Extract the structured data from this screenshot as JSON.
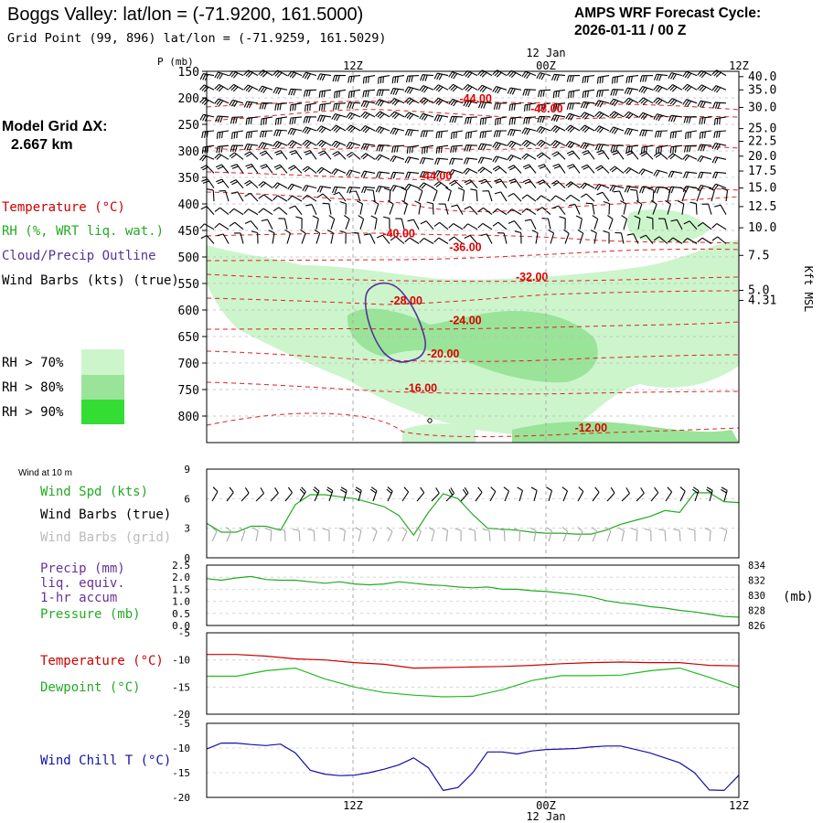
{
  "header": {
    "title": "Boggs Valley:  lat/lon = (-71.9200, 161.5000)",
    "subtitle": "Grid Point (99, 896) lat/lon = (-71.9259, 161.5029)",
    "cycle_line1": "AMPS WRF Forecast Cycle:",
    "cycle_line2": "2026-01-11 / 00  Z"
  },
  "model_grid": {
    "label": "Model Grid ΔX:",
    "value": "2.667 km"
  },
  "colors": {
    "temperature": "#cc0000",
    "rh": "#22aa22",
    "cloud": "#553399",
    "wind": "#000000",
    "wind_grid": "#aaaaaa",
    "dewpoint": "#22bb22",
    "windchill": "#1111aa",
    "rh70": "#ccf5cc",
    "rh80": "#99e499",
    "rh90": "#33dd33"
  },
  "time_axis": {
    "top_labels": [
      "12Z",
      "00Z",
      "12Z"
    ],
    "date_label": "12 Jan",
    "bottom_labels": [
      "12Z",
      "00Z",
      "12Z"
    ]
  },
  "chart_data": [
    {
      "name": "vertical-cross-section",
      "type": "heatmap",
      "y_axis_title": "P (mb)",
      "pressure_ticks": [
        "150",
        "200",
        "250",
        "300",
        "350",
        "400",
        "450",
        "500",
        "550",
        "600",
        "650",
        "700",
        "750",
        "800"
      ],
      "pressure_range": [
        150,
        850
      ],
      "height_ticks": [
        "40.0",
        "35.0",
        "30.0",
        "25.0",
        "22.5",
        "20.0",
        "17.5",
        "15.0",
        "12.5",
        "10.0",
        "7.5",
        "5.0",
        "4.31"
      ],
      "height_tick_pressures": [
        160,
        185,
        218,
        258,
        282,
        310,
        338,
        370,
        405,
        445,
        497,
        563,
        582
      ],
      "height_axis_label": "Kft MSL",
      "time_range_hours": [
        0,
        36
      ],
      "legend": {
        "temperature": "Temperature (°C)",
        "rh": "RH (%, WRT liq. wat.)",
        "cloud": "Cloud/Precip Outline",
        "wind": "Wind Barbs (kts) (true)"
      },
      "rh_legend": [
        "RH > 70%",
        "RH > 80%",
        "RH > 90%"
      ],
      "temperature_contours": [
        {
          "label": "-44.00",
          "t": 18.2,
          "p": 200
        },
        {
          "label": "-48.00",
          "t": 23,
          "p": 219
        },
        {
          "label": "-44.00",
          "t": 15.5,
          "p": 346
        },
        {
          "label": "-40.00",
          "t": 13,
          "p": 454
        },
        {
          "label": "-36.00",
          "t": 17.5,
          "p": 480
        },
        {
          "label": "-32.00",
          "t": 22,
          "p": 536
        },
        {
          "label": "-28.00",
          "t": 13.5,
          "p": 581
        },
        {
          "label": "-24.00",
          "t": 17.5,
          "p": 618
        },
        {
          "label": "-20.00",
          "t": 16,
          "p": 681
        },
        {
          "label": "-16.00",
          "t": 14.5,
          "p": 746
        },
        {
          "label": "-12.00",
          "t": 26,
          "p": 821
        }
      ]
    },
    {
      "name": "wind-panel",
      "type": "line",
      "title": "Wind at 10 m",
      "legend": [
        "Wind Spd (kts)",
        "Wind Barbs (true)",
        "Wind Barbs (grid)"
      ],
      "y_ticks": [
        "9",
        "6",
        "3",
        "0"
      ],
      "ylim": [
        0,
        9
      ],
      "series": [
        {
          "name": "Wind Spd (kts)",
          "x": [
            0,
            1,
            2,
            3,
            4,
            5,
            6,
            7,
            8,
            9,
            10,
            11,
            12,
            13,
            14,
            15,
            16,
            17,
            18,
            19,
            20,
            21,
            22,
            23,
            24,
            25,
            26,
            27,
            28,
            29,
            30,
            31,
            32,
            33,
            34,
            35,
            36
          ],
          "values": [
            3.5,
            2.6,
            2.6,
            3.2,
            3.2,
            2.8,
            5.4,
            6.4,
            6.4,
            6.2,
            6.0,
            5.6,
            5.2,
            4.3,
            2.3,
            4.6,
            6.5,
            6.0,
            4.4,
            3.0,
            2.9,
            2.8,
            2.6,
            2.5,
            2.5,
            2.4,
            2.4,
            2.8,
            3.4,
            3.8,
            4.2,
            4.8,
            4.6,
            6.6,
            6.6,
            5.7,
            5.6
          ]
        }
      ]
    },
    {
      "name": "precip-pressure-panel",
      "type": "line",
      "legend": [
        "Precip (mm)",
        "liq. equiv.",
        "1-hr accum",
        "Pressure (mb)"
      ],
      "y_ticks_left": [
        "2.5",
        "2.0",
        "1.5",
        "1.0",
        "0.5",
        "0.0"
      ],
      "y_ticks_right": [
        "834",
        "832",
        "830",
        "828",
        "826"
      ],
      "ylim_left": [
        0,
        2.5
      ],
      "ylim_right": [
        826,
        834
      ],
      "right_unit": "(mb)",
      "series": [
        {
          "name": "Pressure (mb)",
          "x": [
            0,
            1,
            2,
            3,
            4,
            5,
            6,
            7,
            8,
            9,
            10,
            11,
            12,
            13,
            14,
            15,
            16,
            17,
            18,
            19,
            20,
            21,
            22,
            23,
            24,
            25,
            26,
            27,
            28,
            29,
            30,
            31,
            32,
            33,
            34,
            35,
            36
          ],
          "values": [
            832.2,
            832.0,
            832.3,
            832.5,
            832.1,
            832.0,
            832.0,
            831.8,
            831.6,
            831.8,
            831.5,
            831.4,
            831.5,
            831.8,
            831.6,
            831.4,
            831.3,
            831.1,
            831.0,
            831.1,
            830.8,
            830.8,
            830.6,
            830.5,
            830.3,
            830.1,
            829.8,
            829.3,
            829.0,
            828.8,
            828.5,
            828.3,
            828.0,
            827.8,
            827.5,
            827.2,
            827.1
          ]
        }
      ]
    },
    {
      "name": "temperature-panel",
      "type": "line",
      "legend": [
        "Temperature (°C)",
        "Dewpoint (°C)"
      ],
      "y_ticks": [
        "-5",
        "-10",
        "-15",
        "-20"
      ],
      "ylim": [
        -20,
        -5
      ],
      "series": [
        {
          "name": "Temperature (°C)",
          "x": [
            0,
            2,
            4,
            6,
            8,
            10,
            12,
            14,
            16,
            18,
            20,
            22,
            24,
            26,
            28,
            30,
            32,
            34,
            36
          ],
          "values": [
            -9.0,
            -9.0,
            -9.3,
            -9.8,
            -10.0,
            -10.5,
            -10.8,
            -11.5,
            -11.4,
            -11.3,
            -11.2,
            -11.0,
            -10.7,
            -10.5,
            -10.4,
            -10.5,
            -10.5,
            -11.0,
            -11.1
          ]
        },
        {
          "name": "Dewpoint (°C)",
          "x": [
            0,
            2,
            4,
            6,
            8,
            10,
            12,
            14,
            16,
            18,
            20,
            22,
            24,
            26,
            28,
            30,
            32,
            34,
            36
          ],
          "values": [
            -13.0,
            -13.0,
            -12.0,
            -11.5,
            -13.5,
            -15.0,
            -16.0,
            -16.5,
            -16.8,
            -16.7,
            -15.5,
            -13.8,
            -12.9,
            -12.9,
            -12.8,
            -12.0,
            -11.5,
            -13.2,
            -15.1
          ]
        }
      ]
    },
    {
      "name": "windchill-panel",
      "type": "line",
      "legend": [
        "Wind Chill T (°C)"
      ],
      "y_ticks": [
        "-5",
        "-10",
        "-15",
        "-20"
      ],
      "ylim": [
        -20,
        -5
      ],
      "series": [
        {
          "name": "Wind Chill T (°C)",
          "x": [
            0,
            1,
            2,
            3,
            4,
            5,
            6,
            7,
            8,
            9,
            10,
            11,
            12,
            13,
            14,
            15,
            16,
            17,
            18,
            19,
            20,
            21,
            22,
            23,
            24,
            25,
            26,
            27,
            28,
            29,
            30,
            31,
            32,
            33,
            34,
            35,
            36
          ],
          "values": [
            -10.2,
            -9.0,
            -9.0,
            -9.3,
            -9.5,
            -9.2,
            -11.0,
            -14.5,
            -15.3,
            -15.6,
            -15.5,
            -15.0,
            -14.3,
            -13.4,
            -12.0,
            -14.0,
            -18.6,
            -18.0,
            -15.0,
            -10.8,
            -10.8,
            -11.2,
            -10.6,
            -10.3,
            -10.2,
            -10.1,
            -9.8,
            -9.6,
            -9.6,
            -10.3,
            -11.0,
            -12.0,
            -13.0,
            -15.0,
            -18.5,
            -18.6,
            -15.5
          ]
        }
      ]
    }
  ]
}
